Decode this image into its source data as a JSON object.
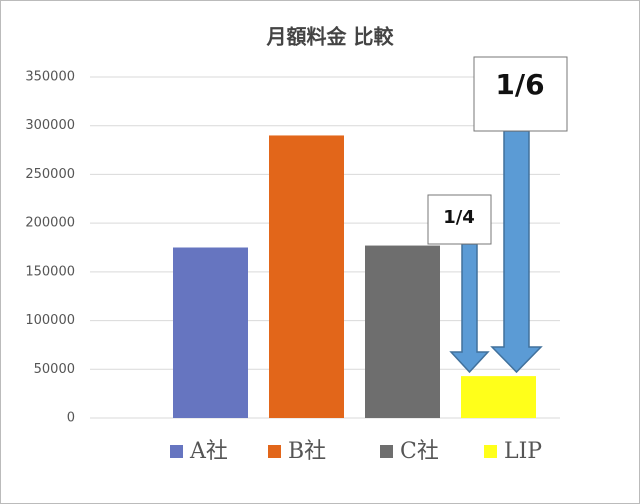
{
  "chart_data": {
    "type": "bar",
    "title": "月額料金 比較",
    "series": [
      {
        "name": "A社",
        "color": "#6675c0",
        "values": [
          175000
        ]
      },
      {
        "name": "B社",
        "color": "#e2661a",
        "values": [
          290000
        ]
      },
      {
        "name": "C社",
        "color": "#6e6e6e",
        "values": [
          177000
        ]
      },
      {
        "name": "LIP",
        "color": "#ffff1a",
        "values": [
          43000
        ]
      }
    ],
    "ylim": [
      0,
      350000
    ],
    "yticks": [
      0,
      50000,
      100000,
      150000,
      200000,
      250000,
      300000,
      350000
    ],
    "grid": true,
    "legend": "bottom",
    "annotations": [
      "1/4",
      "1/6"
    ]
  }
}
